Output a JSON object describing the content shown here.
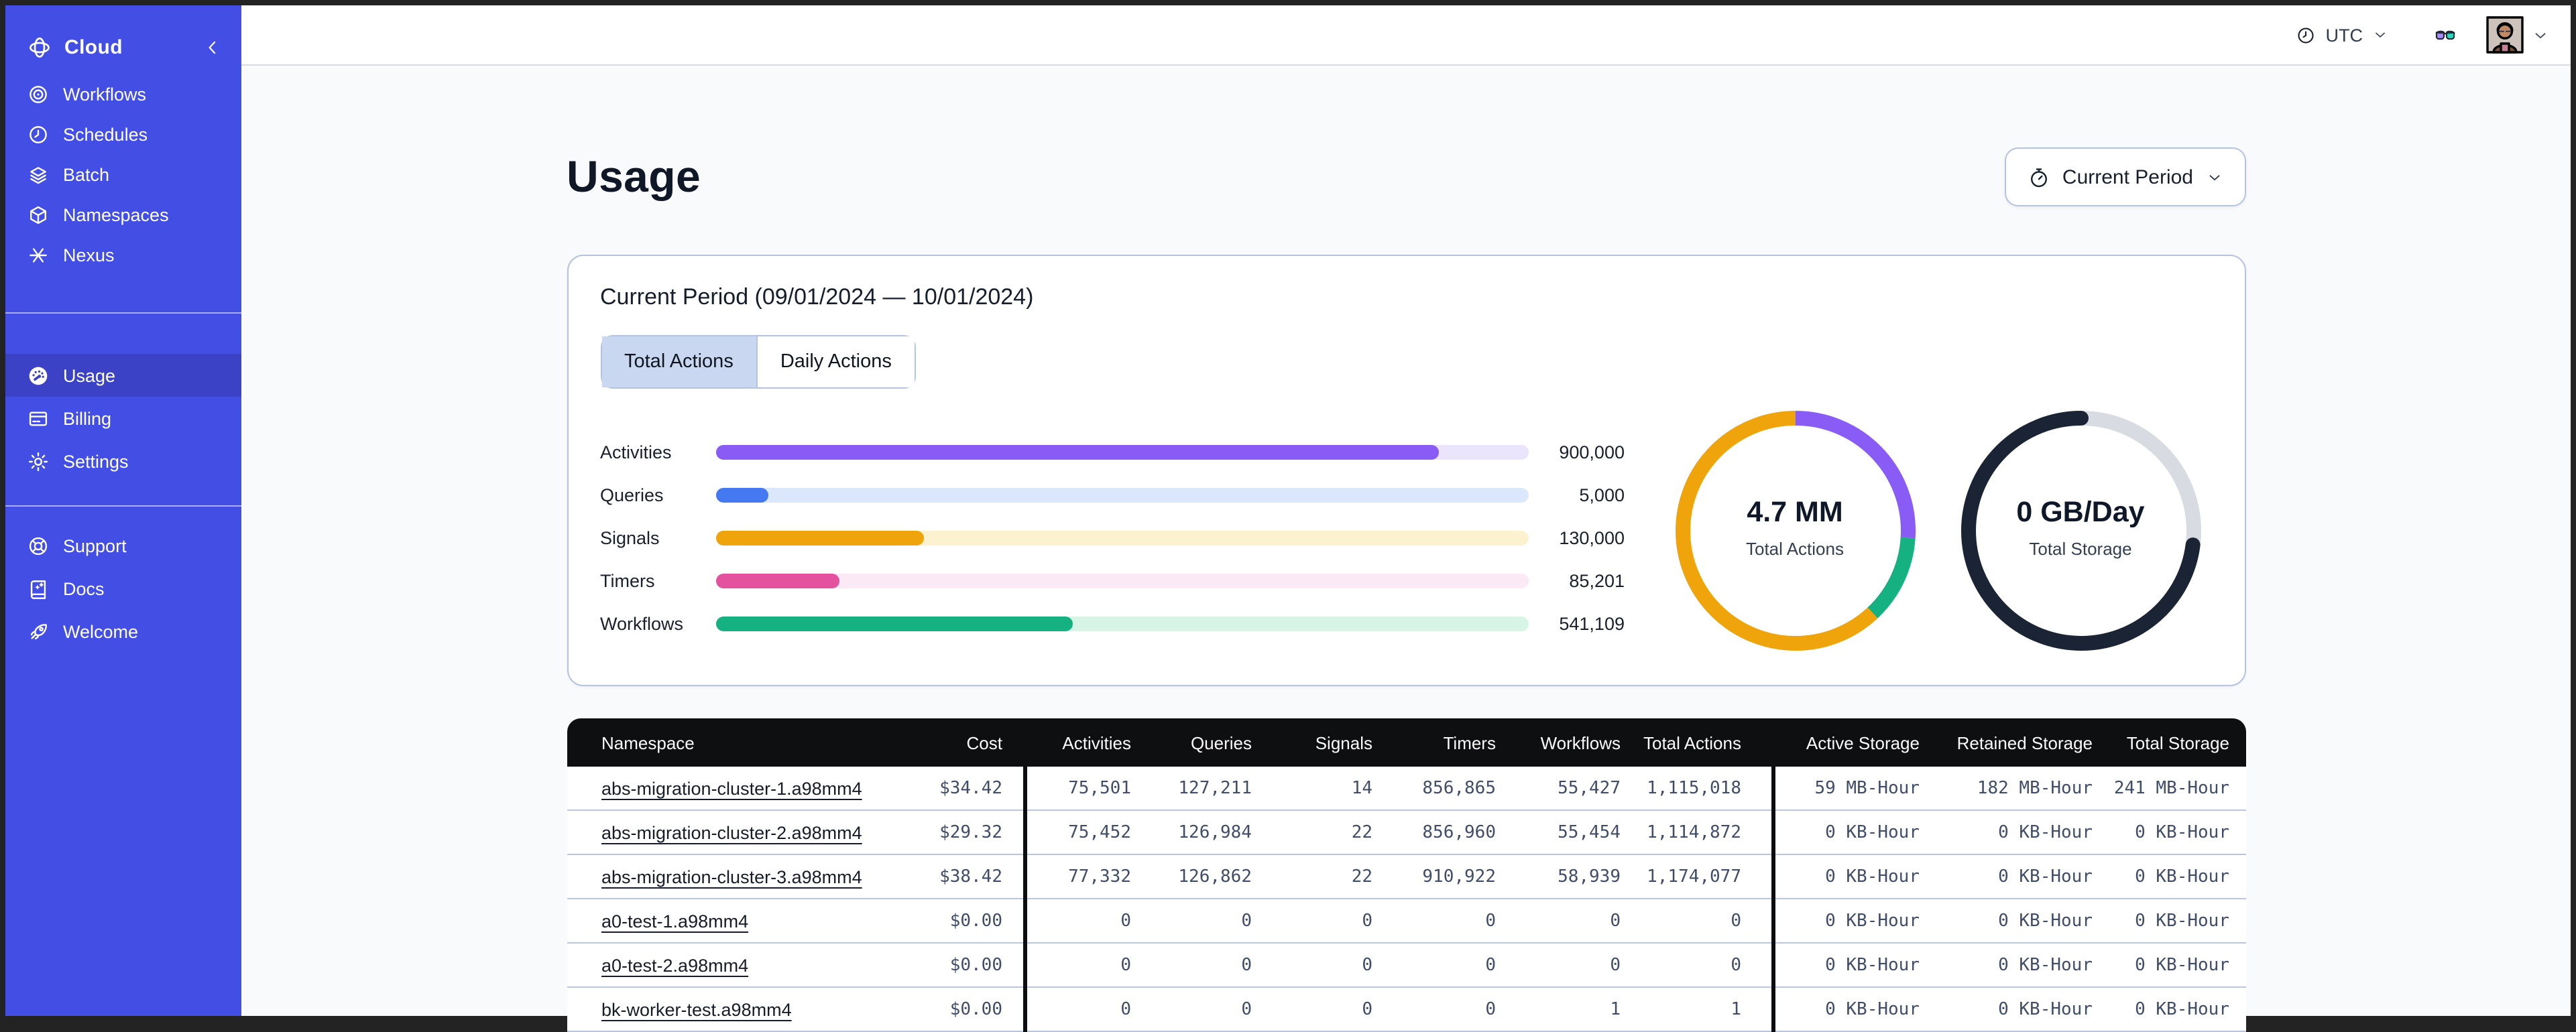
{
  "sidebar": {
    "brand_color": "#434ee5",
    "brand": {
      "label": "Cloud",
      "icon": "temporal-logo",
      "collapse_icon": "chevron-left"
    },
    "sections": [
      {
        "items": [
          {
            "label": "Workflows",
            "icon": "workflows"
          },
          {
            "label": "Schedules",
            "icon": "schedules"
          },
          {
            "label": "Batch",
            "icon": "batch"
          },
          {
            "label": "Namespaces",
            "icon": "namespaces"
          },
          {
            "label": "Nexus",
            "icon": "nexus"
          }
        ]
      },
      {
        "items": [
          {
            "label": "Usage",
            "icon": "usage",
            "active": true
          },
          {
            "label": "Billing",
            "icon": "billing"
          },
          {
            "label": "Settings",
            "icon": "settings"
          }
        ]
      },
      {
        "items": [
          {
            "label": "Support",
            "icon": "support"
          },
          {
            "label": "Docs",
            "icon": "docs"
          },
          {
            "label": "Welcome",
            "icon": "welcome"
          }
        ]
      }
    ]
  },
  "topbar": {
    "timezone": "UTC"
  },
  "page": {
    "title": "Usage",
    "period_button_label": "Current Period"
  },
  "usage_card": {
    "title": "Current Period (09/01/2024 — 10/01/2024)",
    "tabs": [
      {
        "label": "Total Actions",
        "active": true
      },
      {
        "label": "Daily Actions",
        "active": false
      }
    ]
  },
  "chart_data": [
    {
      "type": "bar",
      "orientation": "horizontal",
      "categories": [
        "Activities",
        "Queries",
        "Signals",
        "Timers",
        "Workflows"
      ],
      "values": [
        900000,
        5000,
        130000,
        85201,
        541109
      ],
      "display_values": [
        "900,000",
        "5,000",
        "130,000",
        "85,201",
        "541,109"
      ],
      "colors": [
        "#8a5cf6",
        "#4579f2",
        "#f0a40b",
        "#e4519e",
        "#15b181"
      ],
      "track_colors": [
        "#ebe5fb",
        "#dbe7fa",
        "#fdf2d0",
        "#fce9f6",
        "#d7f5e7"
      ],
      "fill_pct": [
        89,
        6.5,
        25.7,
        15.2,
        44
      ]
    },
    {
      "type": "donut",
      "center_value": "4.7 MM",
      "center_label": "Total Actions",
      "segments": [
        {
          "color": "#8a5cf6",
          "pct": 26
        },
        {
          "color": "#15b181",
          "pct": 12
        },
        {
          "color": "#f0a40b",
          "pct": 62
        }
      ]
    },
    {
      "type": "donut",
      "center_value": "0 GB/Day",
      "center_label": "Total Storage",
      "segments": [
        {
          "color": "#d8dbe1",
          "pct": 27
        },
        {
          "color": "#1b2434",
          "pct": 73
        }
      ]
    }
  ],
  "table": {
    "columns": [
      "Namespace",
      "Cost",
      "Activities",
      "Queries",
      "Signals",
      "Timers",
      "Workflows",
      "Total Actions",
      "Active Storage",
      "Retained Storage",
      "Total Storage"
    ],
    "rows": [
      [
        "abs-migration-cluster-1.a98mm4",
        "$34.42",
        "75,501",
        "127,211",
        "14",
        "856,865",
        "55,427",
        "1,115,018",
        "59 MB-Hour",
        "182 MB-Hour",
        "241 MB-Hour"
      ],
      [
        "abs-migration-cluster-2.a98mm4",
        "$29.32",
        "75,452",
        "126,984",
        "22",
        "856,960",
        "55,454",
        "1,114,872",
        "0 KB-Hour",
        "0 KB-Hour",
        "0 KB-Hour"
      ],
      [
        "abs-migration-cluster-3.a98mm4",
        "$38.42",
        "77,332",
        "126,862",
        "22",
        "910,922",
        "58,939",
        "1,174,077",
        "0 KB-Hour",
        "0 KB-Hour",
        "0 KB-Hour"
      ],
      [
        "a0-test-1.a98mm4",
        "$0.00",
        "0",
        "0",
        "0",
        "0",
        "0",
        "0",
        "0 KB-Hour",
        "0 KB-Hour",
        "0 KB-Hour"
      ],
      [
        "a0-test-2.a98mm4",
        "$0.00",
        "0",
        "0",
        "0",
        "0",
        "0",
        "0",
        "0 KB-Hour",
        "0 KB-Hour",
        "0 KB-Hour"
      ],
      [
        "bk-worker-test.a98mm4",
        "$0.00",
        "0",
        "0",
        "0",
        "0",
        "1",
        "1",
        "0 KB-Hour",
        "0 KB-Hour",
        "0 KB-Hour"
      ]
    ]
  }
}
